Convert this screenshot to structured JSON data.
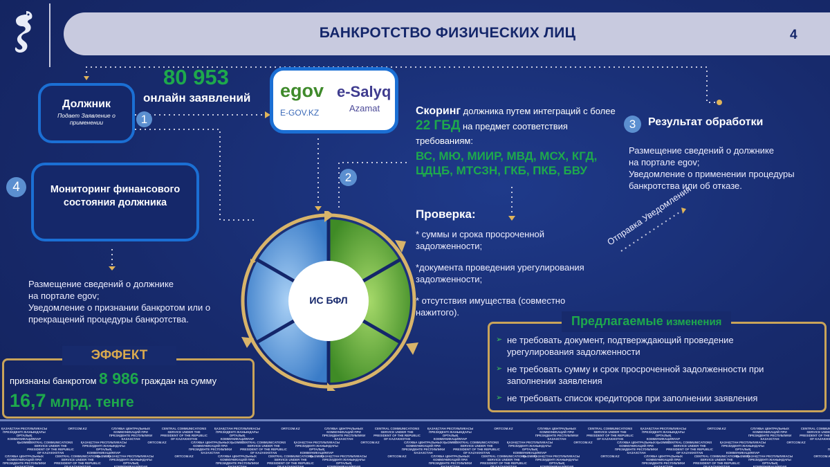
{
  "header": {
    "title": "БАНКРОТСТВО ФИЗИЧЕСКИХ ЛИЦ",
    "page_number": "4"
  },
  "debtor": {
    "title": "Должник",
    "subtitle": "Подает Заявление о применении",
    "step": "1"
  },
  "applications": {
    "count": "80 953",
    "label": "онлайн заявлений"
  },
  "portal": {
    "egov_logo": "egov",
    "egov_domain": "E-GOV.KZ",
    "salyq_logo": "e-Salyq",
    "salyq_sub": "Azamat"
  },
  "monitoring": {
    "step": "4",
    "title": "Мониторинг финансового состояния должника"
  },
  "step2": "2",
  "scoring": {
    "bold": "Скоринг",
    "text1": " должника путем интеграций с более ",
    "highlight": "22 ГБД",
    "text2": " на предмет соответствия требованиям:",
    "agencies": "ВС, МЮ, МИИР, МВД, МСХ, КГД, ЦДЦБ, МТСЗН, ГКБ, ПКБ, БВУ"
  },
  "result": {
    "step": "3",
    "title": "Результат обработки",
    "text": [
      "Размещение сведений о должнике",
      "на портале egov;",
      "Уведомление о применении процедуры",
      "банкротства или об отказе."
    ]
  },
  "check": {
    "title": "Проверка:",
    "items": [
      "* суммы и срока просроченной задолженности;",
      "*документа проведения урегулирования задолженности;",
      "* отсутствия имущества (совместно нажитого)."
    ]
  },
  "notification_label": "Отправка Уведомления",
  "wheel": {
    "center_label": "ИС БФЛ",
    "colors": {
      "blue": "#4f8fd6",
      "green": "#5fae3a",
      "arrows": "#d8b46a"
    }
  },
  "monitoring_result": [
    "Размещение сведений о должнике",
    "на портале egov;",
    "Уведомление о признании банкротом или о",
    "прекращений процедуры банкротства."
  ],
  "effect": {
    "label": "ЭФФЕКТ",
    "text1": "признаны банкротом ",
    "count": "8 986",
    "text2": " граждан на сумму",
    "amount": "16,7",
    "amount_unit": " млрд. тенге"
  },
  "proposed": {
    "title_bold": "Предлагаемые",
    "title_rest": "изменения",
    "items": [
      "не требовать документ, подтверждающий  проведение урегулирования задолженности",
      "не требовать сумму и срок просроченной задолженности при заполнении заявления",
      "не требовать список кредиторов при заполнении заявления"
    ]
  },
  "footer": {
    "watermarks": [
      "ҚАЗАҚСТАН РЕСПУБЛИКАСЫ ПРЕЗИДЕНТІ ЖАНЫНДАҒЫ ОРТАЛЫҚ КОММУНИКАЦИЯЛАР ҚЫЗМЕТІ",
      "ORTCOM.KZ",
      "СЛУЖБА ЦЕНТРАЛЬНЫХ КОММУНИКАЦИЙ ПРИ ПРЕЗИДЕНТЕ РЕСПУБЛИКИ КАЗАХСТАН",
      "CENTRAL COMMUNICATIONS SERVICE UNDER THE PRESIDENT OF THE REPUBLIC OF KAZAKHSTAN"
    ]
  },
  "colors": {
    "background": "#16286a",
    "accent_green": "#1ea94c",
    "gold": "#c9a45a",
    "box_border": "#1b6fd4"
  }
}
